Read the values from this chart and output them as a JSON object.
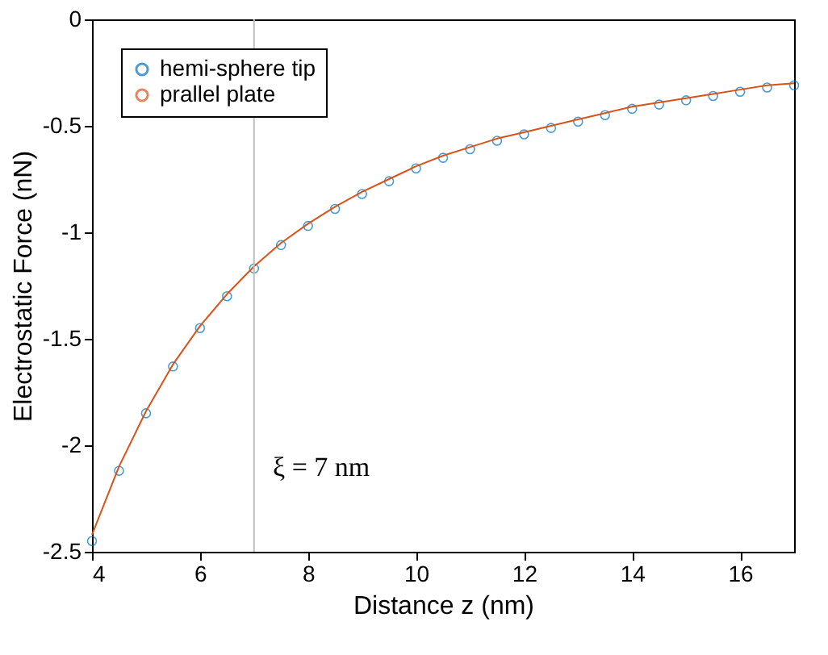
{
  "chart_data": {
    "type": "scatter",
    "xlabel": "Distance z (nm)",
    "ylabel": "Electrostatic Force (nN)",
    "xlim": [
      4,
      17
    ],
    "ylim": [
      -2.5,
      0
    ],
    "xticks": [
      4,
      6,
      8,
      10,
      12,
      14,
      16
    ],
    "yticks": [
      -2.5,
      -2,
      -1.5,
      -1,
      -0.5,
      0
    ],
    "grid": false,
    "legend": "top left",
    "x": [
      4,
      4.5,
      5,
      5.5,
      6,
      6.5,
      7,
      7.5,
      8,
      8.5,
      9,
      9.5,
      10,
      10.5,
      11,
      11.5,
      12,
      12.5,
      13,
      13.5,
      14,
      14.5,
      15,
      15.5,
      16,
      16.5,
      17
    ],
    "series": [
      {
        "name": "hemi-sphere tip",
        "marker": "circle",
        "color": "#0072bd",
        "values": [
          -2.45,
          -2.12,
          -1.85,
          -1.63,
          -1.45,
          -1.3,
          -1.17,
          -1.06,
          -0.97,
          -0.89,
          -0.82,
          -0.76,
          -0.7,
          -0.65,
          -0.61,
          -0.57,
          -0.54,
          -0.51,
          -0.48,
          -0.45,
          -0.42,
          -0.4,
          -0.38,
          -0.36,
          -0.34,
          -0.32,
          -0.31
        ]
      },
      {
        "name": "prallel plate",
        "type": "line",
        "color": "#d95319",
        "values": [
          -2.42,
          -2.1,
          -1.84,
          -1.62,
          -1.44,
          -1.29,
          -1.16,
          -1.05,
          -0.96,
          -0.88,
          -0.81,
          -0.75,
          -0.69,
          -0.64,
          -0.6,
          -0.56,
          -0.53,
          -0.5,
          -0.47,
          -0.44,
          -0.41,
          -0.39,
          -0.37,
          -0.35,
          -0.33,
          -0.31,
          -0.3
        ]
      }
    ],
    "ref_lines": [
      {
        "axis": "x",
        "value": 7,
        "color": "#bdbdbd"
      }
    ],
    "annotations": [
      "ξ = 7 nm"
    ]
  }
}
